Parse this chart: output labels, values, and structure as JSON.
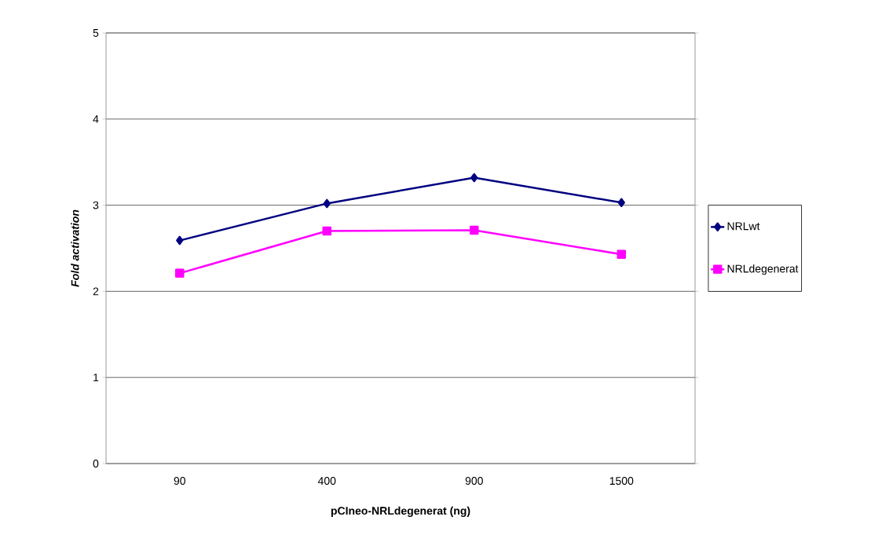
{
  "chart_data": {
    "type": "line",
    "xlabel": "pCIneo-NRLdegenerat (ng)",
    "ylabel": "Fold activation",
    "categories": [
      "90",
      "400",
      "900",
      "1500"
    ],
    "series": [
      {
        "name": "NRLwt",
        "color": "#000080",
        "marker": "diamond",
        "values": [
          2.59,
          3.02,
          3.32,
          3.03
        ]
      },
      {
        "name": "NRLdegenerat",
        "color": "#ff00ff",
        "marker": "square",
        "values": [
          2.21,
          2.7,
          2.71,
          2.43
        ]
      }
    ],
    "ylim": [
      0,
      5
    ],
    "yticks": [
      0,
      1,
      2,
      3,
      4,
      5
    ],
    "grid": "y",
    "legend": "right",
    "line_style": "solid"
  }
}
